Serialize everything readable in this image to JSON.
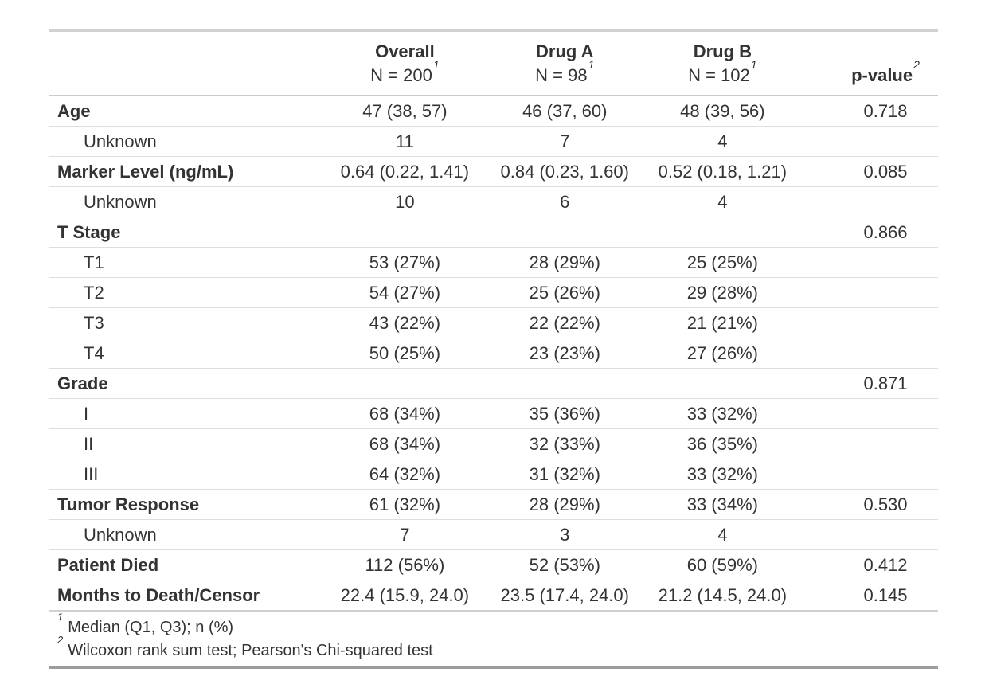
{
  "table": {
    "columns": [
      {
        "label": "",
        "sublabel": "",
        "mark": ""
      },
      {
        "label": "Overall",
        "sublabel": "N = 200",
        "mark": "1"
      },
      {
        "label": "Drug A",
        "sublabel": "N = 98",
        "mark": "1"
      },
      {
        "label": "Drug B",
        "sublabel": "N = 102",
        "mark": "1"
      },
      {
        "label": "p-value",
        "sublabel": "",
        "mark": "2"
      }
    ],
    "rows": [
      {
        "label": "Age",
        "bold": true,
        "indent": false,
        "overall": "47 (38, 57)",
        "drug_a": "46 (37, 60)",
        "drug_b": "48 (39, 56)",
        "p_value": "0.718"
      },
      {
        "label": "Unknown",
        "bold": false,
        "indent": true,
        "overall": "11",
        "drug_a": "7",
        "drug_b": "4",
        "p_value": ""
      },
      {
        "label": "Marker Level (ng/mL)",
        "bold": true,
        "indent": false,
        "overall": "0.64 (0.22, 1.41)",
        "drug_a": "0.84 (0.23, 1.60)",
        "drug_b": "0.52 (0.18, 1.21)",
        "p_value": "0.085"
      },
      {
        "label": "Unknown",
        "bold": false,
        "indent": true,
        "overall": "10",
        "drug_a": "6",
        "drug_b": "4",
        "p_value": ""
      },
      {
        "label": "T Stage",
        "bold": true,
        "indent": false,
        "overall": "",
        "drug_a": "",
        "drug_b": "",
        "p_value": "0.866"
      },
      {
        "label": "T1",
        "bold": false,
        "indent": true,
        "overall": "53 (27%)",
        "drug_a": "28 (29%)",
        "drug_b": "25 (25%)",
        "p_value": ""
      },
      {
        "label": "T2",
        "bold": false,
        "indent": true,
        "overall": "54 (27%)",
        "drug_a": "25 (26%)",
        "drug_b": "29 (28%)",
        "p_value": ""
      },
      {
        "label": "T3",
        "bold": false,
        "indent": true,
        "overall": "43 (22%)",
        "drug_a": "22 (22%)",
        "drug_b": "21 (21%)",
        "p_value": ""
      },
      {
        "label": "T4",
        "bold": false,
        "indent": true,
        "overall": "50 (25%)",
        "drug_a": "23 (23%)",
        "drug_b": "27 (26%)",
        "p_value": ""
      },
      {
        "label": "Grade",
        "bold": true,
        "indent": false,
        "overall": "",
        "drug_a": "",
        "drug_b": "",
        "p_value": "0.871"
      },
      {
        "label": "I",
        "bold": false,
        "indent": true,
        "overall": "68 (34%)",
        "drug_a": "35 (36%)",
        "drug_b": "33 (32%)",
        "p_value": ""
      },
      {
        "label": "II",
        "bold": false,
        "indent": true,
        "overall": "68 (34%)",
        "drug_a": "32 (33%)",
        "drug_b": "36 (35%)",
        "p_value": ""
      },
      {
        "label": "III",
        "bold": false,
        "indent": true,
        "overall": "64 (32%)",
        "drug_a": "31 (32%)",
        "drug_b": "33 (32%)",
        "p_value": ""
      },
      {
        "label": "Tumor Response",
        "bold": true,
        "indent": false,
        "overall": "61 (32%)",
        "drug_a": "28 (29%)",
        "drug_b": "33 (34%)",
        "p_value": "0.530"
      },
      {
        "label": "Unknown",
        "bold": false,
        "indent": true,
        "overall": "7",
        "drug_a": "3",
        "drug_b": "4",
        "p_value": ""
      },
      {
        "label": "Patient Died",
        "bold": true,
        "indent": false,
        "overall": "112 (56%)",
        "drug_a": "52 (53%)",
        "drug_b": "60 (59%)",
        "p_value": "0.412"
      },
      {
        "label": "Months to Death/Censor",
        "bold": true,
        "indent": false,
        "overall": "22.4 (15.9, 24.0)",
        "drug_a": "23.5 (17.4, 24.0)",
        "drug_b": "21.2 (14.5, 24.0)",
        "p_value": "0.145"
      }
    ],
    "footnotes": [
      {
        "mark": "1",
        "text": "Median (Q1, Q3); n (%)"
      },
      {
        "mark": "2",
        "text": "Wilcoxon rank sum test; Pearson's Chi-squared test"
      }
    ]
  },
  "colors": {
    "text": "#333333",
    "border_light": "#dedede",
    "border_medium": "#cbcbcb",
    "border_top": "#d1d1d1",
    "border_bottom": "#9d9d9d",
    "background": "#ffffff"
  }
}
